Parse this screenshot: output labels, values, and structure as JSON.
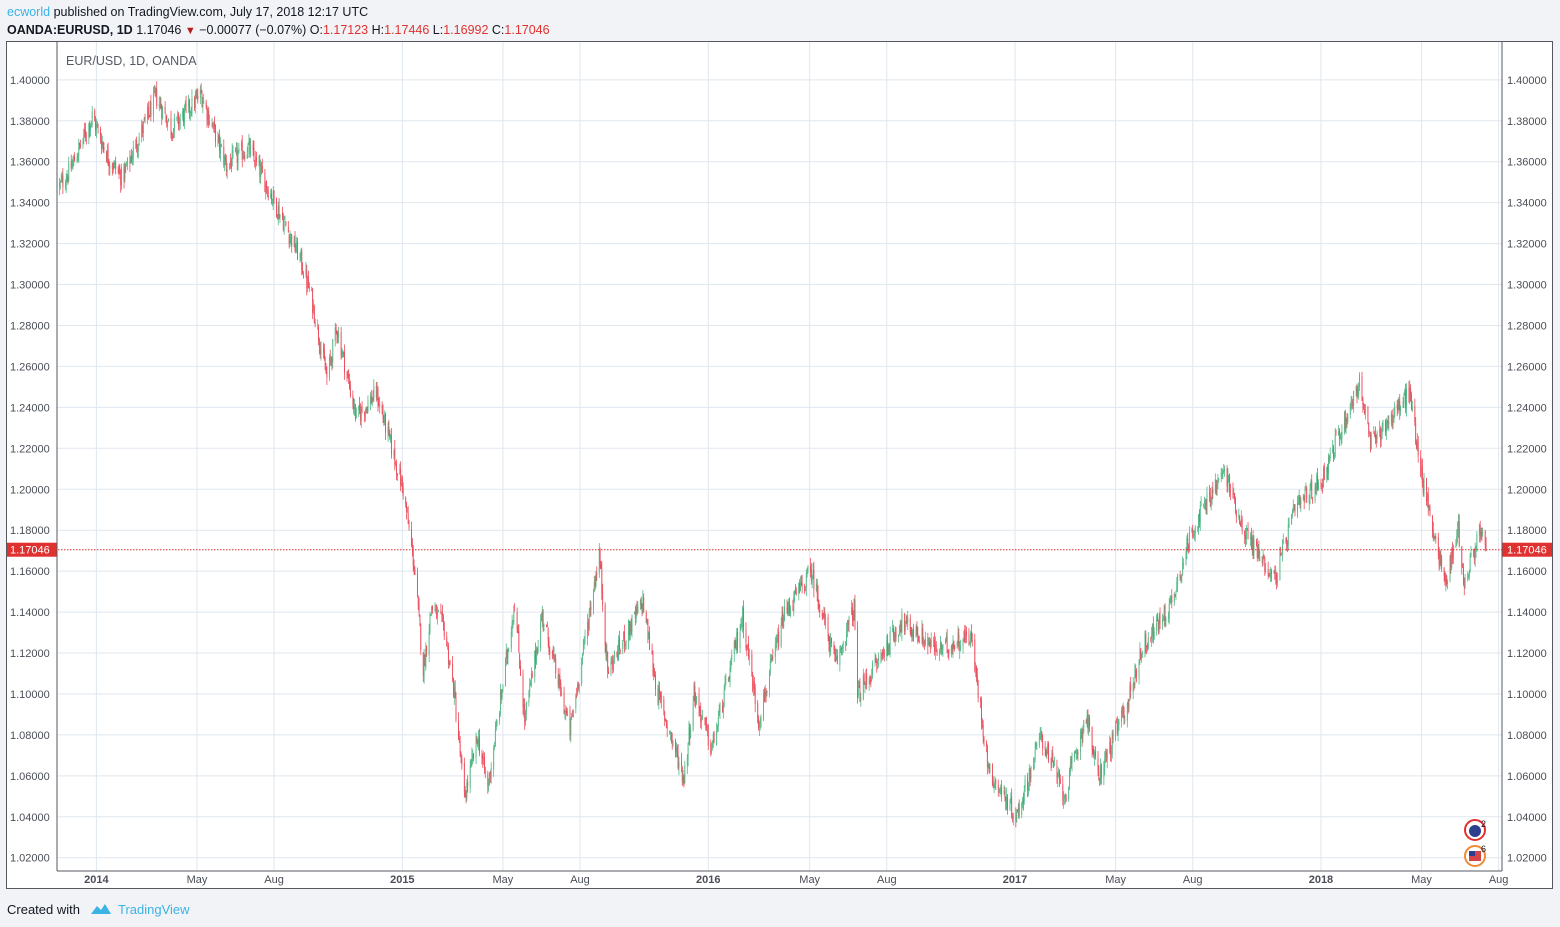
{
  "header": {
    "author": "ecworld",
    "published": "published on TradingView.com, July 17, 2018 12:17 UTC",
    "symbol": "OANDA:EURUSD, 1D",
    "last": "1.17046",
    "change": "−0.00077 (−0.07%)",
    "o_label": "O:",
    "o_value": "1.17123",
    "h_label": "H:",
    "h_value": "1.17446",
    "l_label": "L:",
    "l_value": "1.16992",
    "c_label": "C:",
    "c_value": "1.17046"
  },
  "footer": {
    "created_with": "Created with",
    "brand": "TradingView"
  },
  "colors": {
    "up": "#53b987",
    "down": "#eb4d5c",
    "grid": "#dfe7ef",
    "price_line": "#e03131"
  },
  "chart_data": {
    "type": "candlestick",
    "title": "EUR/USD, 1D, OANDA",
    "current_price": 1.17046,
    "current_price_label": "1.17046",
    "y_range": [
      1.0135,
      1.4185
    ],
    "x_range": [
      "2013-11-15",
      "2018-08-05"
    ],
    "y_ticks": [
      "1.02000",
      "1.04000",
      "1.06000",
      "1.08000",
      "1.10000",
      "1.12000",
      "1.14000",
      "1.16000",
      "1.18000",
      "1.20000",
      "1.22000",
      "1.24000",
      "1.26000",
      "1.28000",
      "1.30000",
      "1.32000",
      "1.34000",
      "1.36000",
      "1.38000",
      "1.40000"
    ],
    "x_ticks": [
      {
        "label": "2014",
        "date": "2014-01-01"
      },
      {
        "label": "May",
        "date": "2014-05-01"
      },
      {
        "label": "Aug",
        "date": "2014-08-01"
      },
      {
        "label": "2015",
        "date": "2015-01-01"
      },
      {
        "label": "May",
        "date": "2015-05-01"
      },
      {
        "label": "Aug",
        "date": "2015-08-01"
      },
      {
        "label": "2016",
        "date": "2016-01-01"
      },
      {
        "label": "May",
        "date": "2016-05-01"
      },
      {
        "label": "Aug",
        "date": "2016-08-01"
      },
      {
        "label": "2017",
        "date": "2017-01-01"
      },
      {
        "label": "May",
        "date": "2017-05-01"
      },
      {
        "label": "Aug",
        "date": "2017-08-01"
      },
      {
        "label": "2018",
        "date": "2018-01-01"
      },
      {
        "label": "May",
        "date": "2018-05-01"
      },
      {
        "label": "Aug",
        "date": "2018-08-01"
      }
    ],
    "close_path": [
      [
        "2013-11-18",
        1.348
      ],
      [
        "2013-12-01",
        1.356
      ],
      [
        "2013-12-27",
        1.382
      ],
      [
        "2014-01-15",
        1.362
      ],
      [
        "2014-02-01",
        1.352
      ],
      [
        "2014-03-13",
        1.392
      ],
      [
        "2014-04-01",
        1.376
      ],
      [
        "2014-05-06",
        1.393
      ],
      [
        "2014-06-05",
        1.358
      ],
      [
        "2014-07-01",
        1.367
      ],
      [
        "2014-08-01",
        1.341
      ],
      [
        "2014-09-01",
        1.313
      ],
      [
        "2014-09-15",
        1.293
      ],
      [
        "2014-10-03",
        1.254
      ],
      [
        "2014-10-15",
        1.279
      ],
      [
        "2014-11-07",
        1.235
      ],
      [
        "2014-12-01",
        1.247
      ],
      [
        "2015-01-02",
        1.2
      ],
      [
        "2015-01-15",
        1.163
      ],
      [
        "2015-01-26",
        1.112
      ],
      [
        "2015-02-05",
        1.143
      ],
      [
        "2015-02-20",
        1.132
      ],
      [
        "2015-03-04",
        1.1
      ],
      [
        "2015-03-16",
        1.049
      ],
      [
        "2015-04-01",
        1.079
      ],
      [
        "2015-04-13",
        1.054
      ],
      [
        "2015-05-15",
        1.145
      ],
      [
        "2015-05-27",
        1.087
      ],
      [
        "2015-06-17",
        1.139
      ],
      [
        "2015-07-20",
        1.082
      ],
      [
        "2015-08-24",
        1.169
      ],
      [
        "2015-09-03",
        1.111
      ],
      [
        "2015-10-15",
        1.145
      ],
      [
        "2015-11-01",
        1.101
      ],
      [
        "2015-12-03",
        1.059
      ],
      [
        "2015-12-15",
        1.101
      ],
      [
        "2016-01-05",
        1.073
      ],
      [
        "2016-02-11",
        1.138
      ],
      [
        "2016-03-01",
        1.087
      ],
      [
        "2016-03-31",
        1.138
      ],
      [
        "2016-05-03",
        1.16
      ],
      [
        "2016-06-01",
        1.114
      ],
      [
        "2016-06-23",
        1.142
      ],
      [
        "2016-06-27",
        1.099
      ],
      [
        "2016-08-18",
        1.135
      ],
      [
        "2016-09-08",
        1.129
      ],
      [
        "2016-10-01",
        1.121
      ],
      [
        "2016-11-09",
        1.129
      ],
      [
        "2016-12-01",
        1.062
      ],
      [
        "2017-01-03",
        1.04
      ],
      [
        "2017-02-01",
        1.08
      ],
      [
        "2017-03-01",
        1.05
      ],
      [
        "2017-03-27",
        1.09
      ],
      [
        "2017-04-10",
        1.059
      ],
      [
        "2017-05-15",
        1.095
      ],
      [
        "2017-06-01",
        1.122
      ],
      [
        "2017-07-05",
        1.143
      ],
      [
        "2017-08-01",
        1.181
      ],
      [
        "2017-09-08",
        1.209
      ],
      [
        "2017-10-01",
        1.18
      ],
      [
        "2017-11-07",
        1.156
      ],
      [
        "2017-12-01",
        1.19
      ],
      [
        "2018-01-02",
        1.205
      ],
      [
        "2018-02-16",
        1.252
      ],
      [
        "2018-03-01",
        1.222
      ],
      [
        "2018-04-17",
        1.247
      ],
      [
        "2018-05-01",
        1.207
      ],
      [
        "2018-05-29",
        1.154
      ],
      [
        "2018-06-14",
        1.181
      ],
      [
        "2018-06-21",
        1.153
      ],
      [
        "2018-07-09",
        1.179
      ],
      [
        "2018-07-17",
        1.1705
      ]
    ]
  }
}
